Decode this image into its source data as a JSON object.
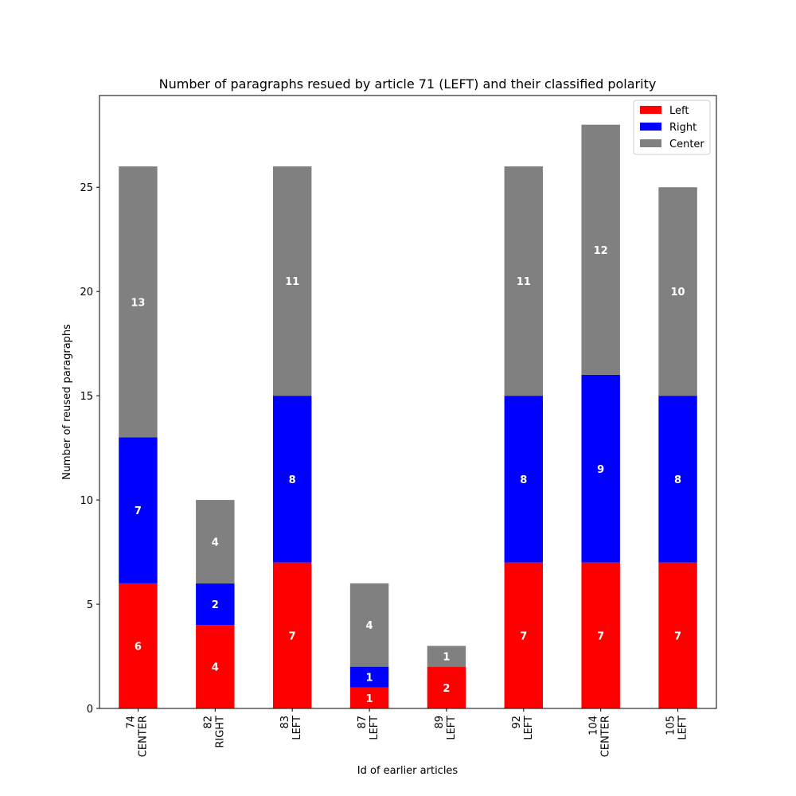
{
  "chart_data": {
    "type": "bar",
    "stacked": true,
    "title": "Number of paragraphs resued by article 71 (LEFT) and their classified polarity",
    "xlabel": "Id of earlier articles",
    "ylabel": "Number of reused paragraphs",
    "categories": [
      [
        "74",
        "CENTER"
      ],
      [
        "82",
        "RIGHT"
      ],
      [
        "83",
        "LEFT"
      ],
      [
        "87",
        "LEFT"
      ],
      [
        "89",
        "LEFT"
      ],
      [
        "92",
        "LEFT"
      ],
      [
        "104",
        "CENTER"
      ],
      [
        "105",
        "LEFT"
      ]
    ],
    "series": [
      {
        "name": "Left",
        "color": "#ff0000",
        "values": [
          6,
          4,
          7,
          1,
          2,
          7,
          7,
          7
        ]
      },
      {
        "name": "Right",
        "color": "#0000ff",
        "values": [
          7,
          2,
          8,
          1,
          0,
          8,
          9,
          8
        ]
      },
      {
        "name": "Center",
        "color": "#808080",
        "values": [
          13,
          4,
          11,
          4,
          1,
          11,
          12,
          10
        ]
      }
    ],
    "ylim": [
      0,
      29.4
    ],
    "yticks": [
      0,
      5,
      10,
      15,
      20,
      25
    ],
    "grid": false,
    "legend_position": "top-right"
  }
}
